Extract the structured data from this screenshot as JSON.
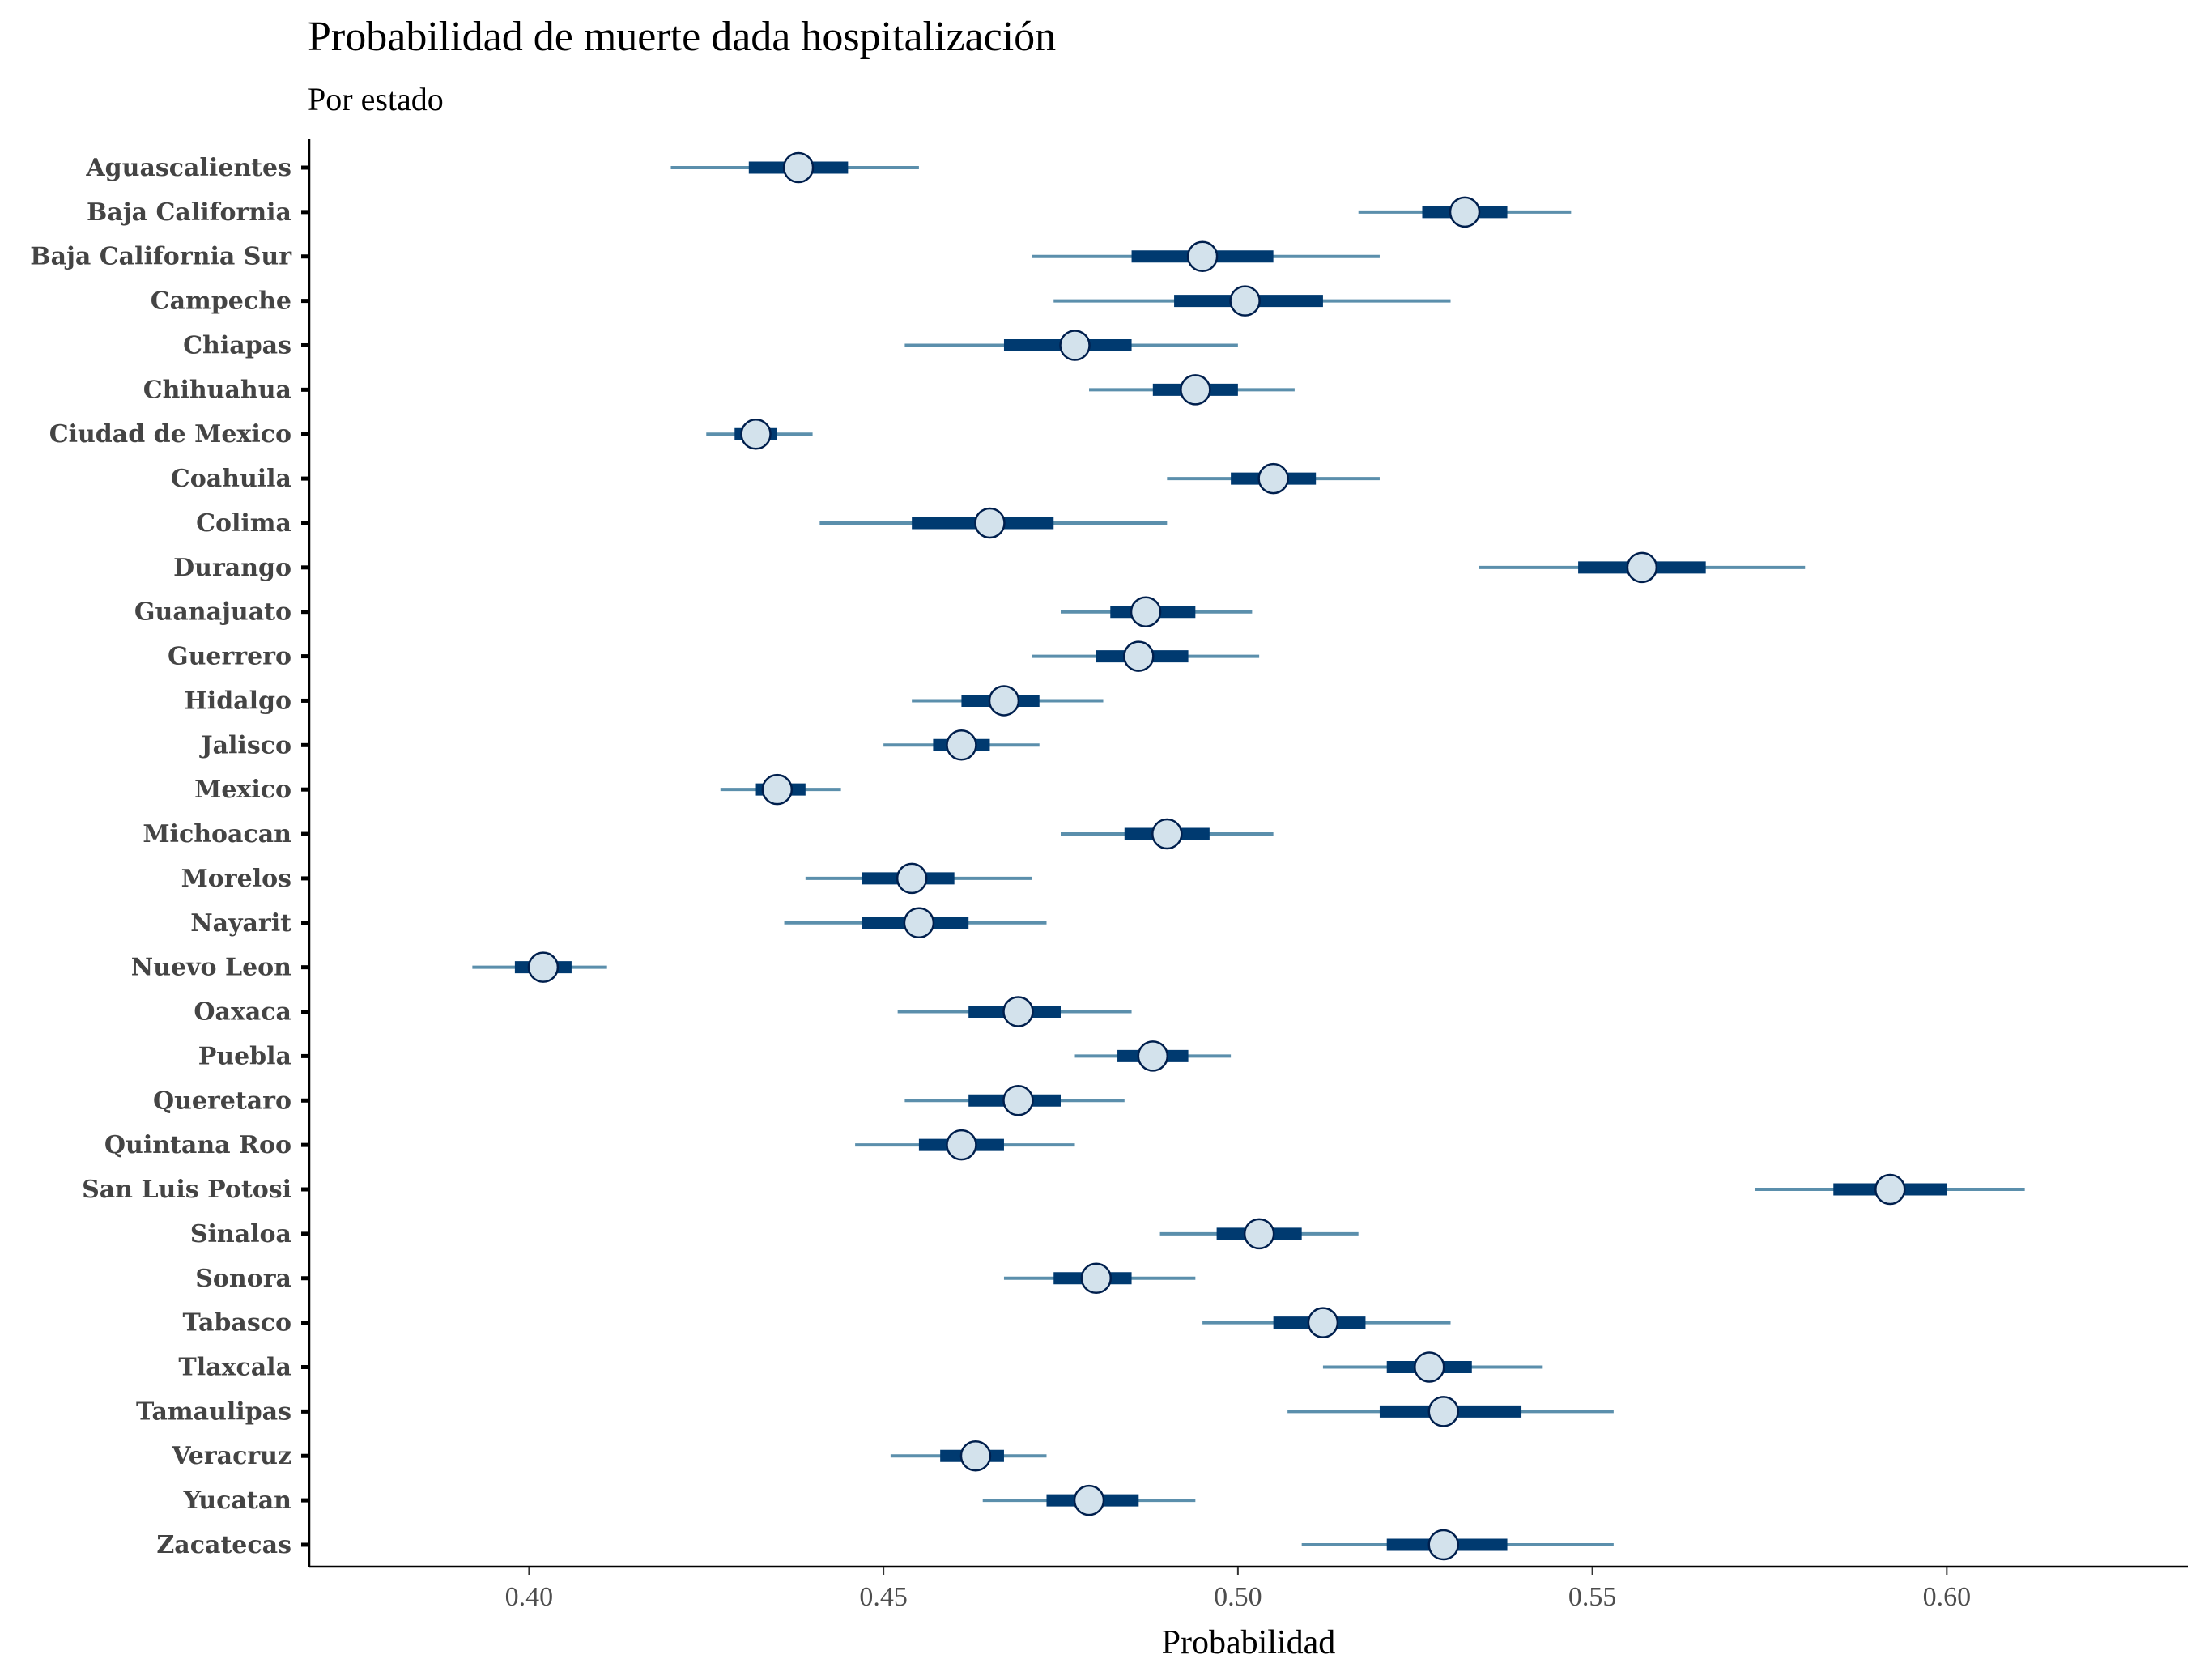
{
  "chart_data": {
    "type": "interval",
    "title": "Probabilidad de muerte dada hospitalización",
    "subtitle": "Por estado",
    "xlabel": "Probabilidad",
    "ylabel": "",
    "xlim": [
      0.369,
      0.634
    ],
    "xticks": [
      "0.40",
      "0.45",
      "0.50",
      "0.55",
      "0.60"
    ],
    "grid": false,
    "colors": {
      "outer_interval": "#5b8fac",
      "inner_interval": "#003a70",
      "point_fill": "#d3e2ec",
      "point_stroke": "#001f4d"
    },
    "states": [
      {
        "name": "Aguascalientes",
        "median": 0.438,
        "lo50": 0.431,
        "hi50": 0.445,
        "lo95": 0.42,
        "hi95": 0.455
      },
      {
        "name": "Baja California",
        "median": 0.532,
        "lo50": 0.526,
        "hi50": 0.538,
        "lo95": 0.517,
        "hi95": 0.547
      },
      {
        "name": "Baja California Sur",
        "median": 0.495,
        "lo50": 0.485,
        "hi50": 0.505,
        "lo95": 0.471,
        "hi95": 0.52
      },
      {
        "name": "Campeche",
        "median": 0.501,
        "lo50": 0.491,
        "hi50": 0.512,
        "lo95": 0.474,
        "hi95": 0.53
      },
      {
        "name": "Chiapas",
        "median": 0.477,
        "lo50": 0.467,
        "hi50": 0.485,
        "lo95": 0.453,
        "hi95": 0.5
      },
      {
        "name": "Chihuahua",
        "median": 0.494,
        "lo50": 0.488,
        "hi50": 0.5,
        "lo95": 0.479,
        "hi95": 0.508
      },
      {
        "name": "Ciudad de Mexico",
        "median": 0.432,
        "lo50": 0.429,
        "hi50": 0.435,
        "lo95": 0.425,
        "hi95": 0.44
      },
      {
        "name": "Coahuila",
        "median": 0.505,
        "lo50": 0.499,
        "hi50": 0.511,
        "lo95": 0.49,
        "hi95": 0.52
      },
      {
        "name": "Colima",
        "median": 0.465,
        "lo50": 0.454,
        "hi50": 0.474,
        "lo95": 0.441,
        "hi95": 0.49
      },
      {
        "name": "Durango",
        "median": 0.557,
        "lo50": 0.548,
        "hi50": 0.566,
        "lo95": 0.534,
        "hi95": 0.58
      },
      {
        "name": "Guanajuato",
        "median": 0.487,
        "lo50": 0.482,
        "hi50": 0.494,
        "lo95": 0.475,
        "hi95": 0.502
      },
      {
        "name": "Guerrero",
        "median": 0.486,
        "lo50": 0.48,
        "hi50": 0.493,
        "lo95": 0.471,
        "hi95": 0.503
      },
      {
        "name": "Hidalgo",
        "median": 0.467,
        "lo50": 0.461,
        "hi50": 0.472,
        "lo95": 0.454,
        "hi95": 0.481
      },
      {
        "name": "Jalisco",
        "median": 0.461,
        "lo50": 0.457,
        "hi50": 0.465,
        "lo95": 0.45,
        "hi95": 0.472
      },
      {
        "name": "Mexico",
        "median": 0.435,
        "lo50": 0.432,
        "hi50": 0.439,
        "lo95": 0.427,
        "hi95": 0.444
      },
      {
        "name": "Michoacan",
        "median": 0.49,
        "lo50": 0.484,
        "hi50": 0.496,
        "lo95": 0.475,
        "hi95": 0.505
      },
      {
        "name": "Morelos",
        "median": 0.454,
        "lo50": 0.447,
        "hi50": 0.46,
        "lo95": 0.439,
        "hi95": 0.471
      },
      {
        "name": "Nayarit",
        "median": 0.455,
        "lo50": 0.447,
        "hi50": 0.462,
        "lo95": 0.436,
        "hi95": 0.473
      },
      {
        "name": "Nuevo Leon",
        "median": 0.402,
        "lo50": 0.398,
        "hi50": 0.406,
        "lo95": 0.392,
        "hi95": 0.411
      },
      {
        "name": "Oaxaca",
        "median": 0.469,
        "lo50": 0.462,
        "hi50": 0.475,
        "lo95": 0.452,
        "hi95": 0.485
      },
      {
        "name": "Puebla",
        "median": 0.488,
        "lo50": 0.483,
        "hi50": 0.493,
        "lo95": 0.477,
        "hi95": 0.499
      },
      {
        "name": "Queretaro",
        "median": 0.469,
        "lo50": 0.462,
        "hi50": 0.475,
        "lo95": 0.453,
        "hi95": 0.484
      },
      {
        "name": "Quintana Roo",
        "median": 0.461,
        "lo50": 0.455,
        "hi50": 0.467,
        "lo95": 0.446,
        "hi95": 0.477
      },
      {
        "name": "San Luis Potosi",
        "median": 0.592,
        "lo50": 0.584,
        "hi50": 0.6,
        "lo95": 0.573,
        "hi95": 0.611
      },
      {
        "name": "Sinaloa",
        "median": 0.503,
        "lo50": 0.497,
        "hi50": 0.509,
        "lo95": 0.489,
        "hi95": 0.517
      },
      {
        "name": "Sonora",
        "median": 0.48,
        "lo50": 0.474,
        "hi50": 0.485,
        "lo95": 0.467,
        "hi95": 0.494
      },
      {
        "name": "Tabasco",
        "median": 0.512,
        "lo50": 0.505,
        "hi50": 0.518,
        "lo95": 0.495,
        "hi95": 0.53
      },
      {
        "name": "Tlaxcala",
        "median": 0.527,
        "lo50": 0.521,
        "hi50": 0.533,
        "lo95": 0.512,
        "hi95": 0.543
      },
      {
        "name": "Tamaulipas",
        "median": 0.529,
        "lo50": 0.52,
        "hi50": 0.54,
        "lo95": 0.507,
        "hi95": 0.553
      },
      {
        "name": "Veracruz",
        "median": 0.463,
        "lo50": 0.458,
        "hi50": 0.467,
        "lo95": 0.451,
        "hi95": 0.473
      },
      {
        "name": "Yucatan",
        "median": 0.479,
        "lo50": 0.473,
        "hi50": 0.486,
        "lo95": 0.464,
        "hi95": 0.494
      },
      {
        "name": "Zacatecas",
        "median": 0.529,
        "lo50": 0.521,
        "hi50": 0.538,
        "lo95": 0.509,
        "hi95": 0.553
      }
    ]
  }
}
